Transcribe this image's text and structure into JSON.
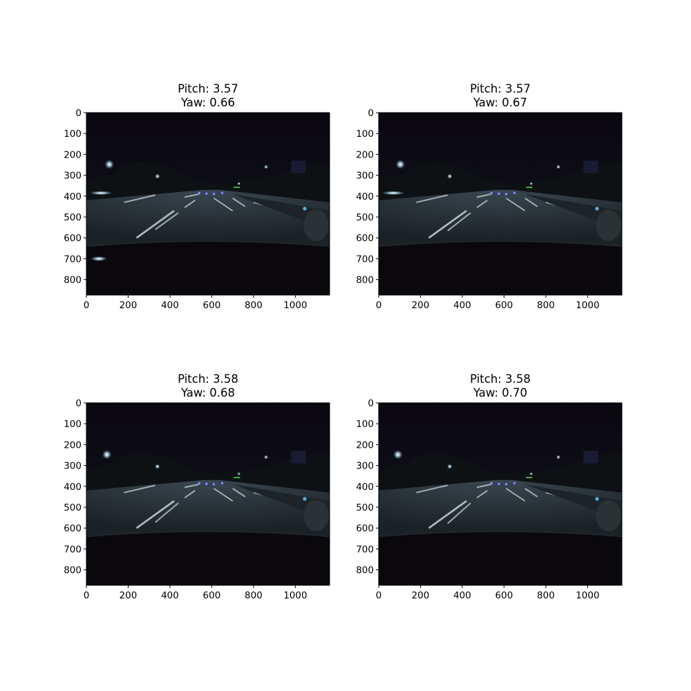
{
  "chart_data": [
    {
      "type": "image",
      "title_lines": [
        "Pitch: 3.57",
        "Yaw: 0.66"
      ],
      "xticks": [
        0,
        200,
        400,
        600,
        800,
        1000
      ],
      "yticks": [
        0,
        100,
        200,
        300,
        400,
        500,
        600,
        700,
        800
      ],
      "xlim": [
        0,
        1164
      ],
      "ylim": [
        874,
        0
      ],
      "image_content": "night-highway-dashcam"
    },
    {
      "type": "image",
      "title_lines": [
        "Pitch: 3.57",
        "Yaw: 0.67"
      ],
      "xticks": [
        0,
        200,
        400,
        600,
        800,
        1000
      ],
      "yticks": [
        0,
        100,
        200,
        300,
        400,
        500,
        600,
        700,
        800
      ],
      "xlim": [
        0,
        1164
      ],
      "ylim": [
        874,
        0
      ],
      "image_content": "night-highway-dashcam"
    },
    {
      "type": "image",
      "title_lines": [
        "Pitch: 3.58",
        "Yaw: 0.68"
      ],
      "xticks": [
        0,
        200,
        400,
        600,
        800,
        1000
      ],
      "yticks": [
        0,
        100,
        200,
        300,
        400,
        500,
        600,
        700,
        800
      ],
      "xlim": [
        0,
        1164
      ],
      "ylim": [
        874,
        0
      ],
      "image_content": "night-highway-dashcam"
    },
    {
      "type": "image",
      "title_lines": [
        "Pitch: 3.58",
        "Yaw: 0.70"
      ],
      "xticks": [
        0,
        200,
        400,
        600,
        800,
        1000
      ],
      "yticks": [
        0,
        100,
        200,
        300,
        400,
        500,
        600,
        700,
        800
      ],
      "xlim": [
        0,
        1164
      ],
      "ylim": [
        874,
        0
      ],
      "image_content": "night-highway-dashcam"
    }
  ]
}
